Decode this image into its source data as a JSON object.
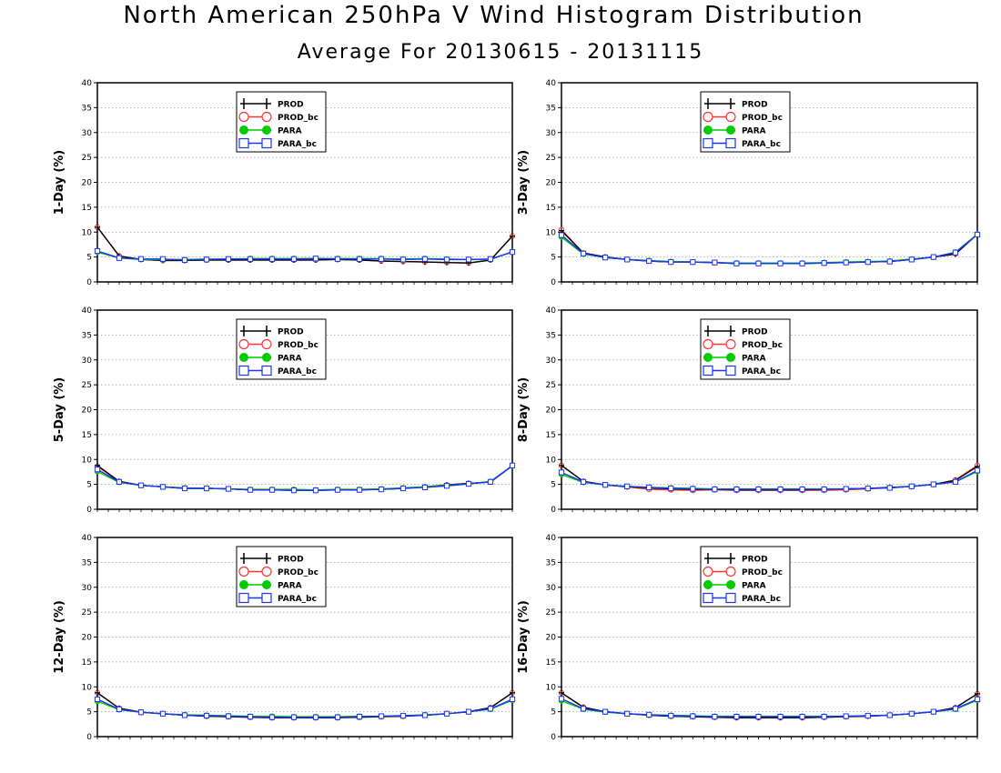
{
  "title": "North American 250hPa V Wind Histogram Distribution",
  "subtitle": "Average For 20130615 - 20131115",
  "series_styles": [
    {
      "name": "PROD",
      "color": "#000000",
      "marker": "plus"
    },
    {
      "name": "PROD_bc",
      "color": "#ff3333",
      "marker": "open-circle"
    },
    {
      "name": "PARA",
      "color": "#00cc00",
      "marker": "filled-circle"
    },
    {
      "name": "PARA_bc",
      "color": "#1a33ff",
      "marker": "open-square"
    }
  ],
  "chart_data": [
    {
      "type": "line",
      "ylabel": "1-Day (%)",
      "ylim": [
        0,
        40
      ],
      "yticks": [
        0,
        5,
        10,
        15,
        20,
        25,
        30,
        35,
        40
      ],
      "grid": true,
      "legend": "top-left",
      "series": [
        {
          "name": "PROD",
          "values": [
            11,
            5.2,
            4.5,
            4.3,
            4.3,
            4.4,
            4.4,
            4.4,
            4.4,
            4.4,
            4.4,
            4.5,
            4.4,
            4.2,
            4.1,
            4.0,
            3.9,
            3.8,
            4.4,
            9.2
          ]
        },
        {
          "name": "PROD_bc",
          "values": [
            11,
            5.2,
            4.5,
            4.3,
            4.3,
            4.4,
            4.4,
            4.4,
            4.4,
            4.4,
            4.4,
            4.5,
            4.4,
            4.2,
            4.1,
            4.0,
            3.9,
            3.8,
            4.4,
            9.2
          ]
        },
        {
          "name": "PARA",
          "values": [
            6.0,
            4.8,
            4.5,
            4.5,
            4.5,
            4.6,
            4.6,
            4.7,
            4.7,
            4.7,
            4.7,
            4.7,
            4.7,
            4.7,
            4.6,
            4.7,
            4.6,
            4.5,
            4.5,
            6.1
          ]
        },
        {
          "name": "PARA_bc",
          "values": [
            6.2,
            4.8,
            4.6,
            4.6,
            4.4,
            4.5,
            4.6,
            4.6,
            4.6,
            4.6,
            4.7,
            4.6,
            4.6,
            4.6,
            4.5,
            4.6,
            4.5,
            4.5,
            4.6,
            6.0
          ]
        }
      ]
    },
    {
      "type": "line",
      "ylabel": "3-Day (%)",
      "ylim": [
        0,
        40
      ],
      "yticks": [
        0,
        5,
        10,
        15,
        20,
        25,
        30,
        35,
        40
      ],
      "grid": true,
      "legend": "top-left",
      "series": [
        {
          "name": "PROD",
          "values": [
            10.3,
            5.8,
            5.0,
            4.5,
            4.2,
            4.0,
            4.0,
            3.9,
            3.7,
            3.7,
            3.7,
            3.7,
            3.8,
            3.9,
            4.0,
            4.1,
            4.5,
            5.0,
            5.6,
            9.6
          ]
        },
        {
          "name": "PROD_bc",
          "values": [
            10.5,
            5.8,
            5.0,
            4.5,
            4.2,
            4.0,
            4.0,
            3.9,
            3.7,
            3.7,
            3.7,
            3.7,
            3.8,
            3.9,
            4.0,
            4.1,
            4.5,
            5.0,
            5.6,
            9.6
          ]
        },
        {
          "name": "PARA",
          "values": [
            9.0,
            5.6,
            4.9,
            4.5,
            4.3,
            4.1,
            4.0,
            3.9,
            3.8,
            3.8,
            3.8,
            3.8,
            3.9,
            4.0,
            4.1,
            4.2,
            4.6,
            5.0,
            6.0,
            9.6
          ]
        },
        {
          "name": "PARA_bc",
          "values": [
            9.4,
            5.7,
            4.9,
            4.5,
            4.2,
            4.0,
            4.0,
            3.9,
            3.7,
            3.7,
            3.7,
            3.7,
            3.8,
            3.9,
            4.0,
            4.1,
            4.5,
            5.0,
            5.9,
            9.5
          ]
        }
      ]
    },
    {
      "type": "line",
      "ylabel": "5-Day (%)",
      "ylim": [
        0,
        40
      ],
      "yticks": [
        0,
        5,
        10,
        15,
        20,
        25,
        30,
        35,
        40
      ],
      "grid": true,
      "legend": "top-left",
      "series": [
        {
          "name": "PROD",
          "values": [
            8.8,
            5.6,
            4.8,
            4.5,
            4.2,
            4.2,
            4.1,
            3.9,
            3.9,
            3.8,
            3.8,
            3.9,
            3.9,
            4.0,
            4.2,
            4.5,
            4.9,
            5.2,
            5.5,
            8.7
          ]
        },
        {
          "name": "PROD_bc",
          "values": [
            8.6,
            5.6,
            4.8,
            4.5,
            4.2,
            4.2,
            4.1,
            3.9,
            3.9,
            3.8,
            3.8,
            3.9,
            3.9,
            4.0,
            4.2,
            4.5,
            4.9,
            5.2,
            5.5,
            8.7
          ]
        },
        {
          "name": "PARA",
          "values": [
            7.6,
            5.4,
            4.8,
            4.5,
            4.3,
            4.2,
            4.1,
            4.0,
            4.0,
            4.0,
            3.9,
            4.0,
            4.0,
            4.1,
            4.3,
            4.5,
            4.8,
            5.1,
            5.6,
            8.7
          ]
        },
        {
          "name": "PARA_bc",
          "values": [
            8.0,
            5.5,
            4.8,
            4.5,
            4.2,
            4.2,
            4.1,
            3.9,
            3.9,
            3.8,
            3.8,
            3.9,
            3.9,
            4.0,
            4.2,
            4.4,
            4.7,
            5.1,
            5.5,
            8.8
          ]
        }
      ]
    },
    {
      "type": "line",
      "ylabel": "8-Day (%)",
      "ylim": [
        0,
        40
      ],
      "yticks": [
        0,
        5,
        10,
        15,
        20,
        25,
        30,
        35,
        40
      ],
      "grid": true,
      "legend": "top-left",
      "series": [
        {
          "name": "PROD",
          "values": [
            8.8,
            5.6,
            4.9,
            4.5,
            4.3,
            4.1,
            4.0,
            4.0,
            3.9,
            3.9,
            3.9,
            3.9,
            4.0,
            4.1,
            4.2,
            4.4,
            4.6,
            5.0,
            5.8,
            8.6
          ]
        },
        {
          "name": "PROD_bc",
          "values": [
            8.8,
            5.6,
            4.9,
            4.5,
            4.0,
            3.9,
            3.8,
            3.9,
            3.8,
            3.8,
            3.8,
            3.8,
            3.8,
            3.9,
            4.1,
            4.3,
            4.6,
            5.0,
            5.9,
            8.8
          ]
        },
        {
          "name": "PARA",
          "values": [
            7.0,
            5.4,
            4.9,
            4.6,
            4.4,
            4.3,
            4.2,
            4.1,
            4.1,
            4.1,
            4.1,
            4.1,
            4.1,
            4.1,
            4.2,
            4.3,
            4.6,
            5.0,
            5.5,
            7.6
          ]
        },
        {
          "name": "PARA_bc",
          "values": [
            7.4,
            5.5,
            4.9,
            4.6,
            4.4,
            4.2,
            4.1,
            4.0,
            4.0,
            4.0,
            4.0,
            4.0,
            4.0,
            4.1,
            4.2,
            4.3,
            4.6,
            5.0,
            5.5,
            7.8
          ]
        }
      ]
    },
    {
      "type": "line",
      "ylabel": "12-Day (%)",
      "ylim": [
        0,
        40
      ],
      "yticks": [
        0,
        5,
        10,
        15,
        20,
        25,
        30,
        35,
        40
      ],
      "grid": true,
      "legend": "top-left",
      "series": [
        {
          "name": "PROD",
          "values": [
            8.8,
            5.7,
            4.9,
            4.6,
            4.3,
            4.1,
            4.0,
            3.9,
            3.8,
            3.8,
            3.8,
            3.8,
            3.9,
            4.0,
            4.1,
            4.3,
            4.6,
            5.0,
            5.8,
            8.8
          ]
        },
        {
          "name": "PROD_bc",
          "values": [
            8.8,
            5.7,
            4.9,
            4.6,
            4.3,
            4.1,
            4.0,
            3.9,
            3.8,
            3.8,
            3.8,
            3.8,
            3.9,
            4.0,
            4.1,
            4.3,
            4.6,
            5.0,
            5.8,
            8.8
          ]
        },
        {
          "name": "PARA",
          "values": [
            7.1,
            5.4,
            4.9,
            4.6,
            4.4,
            4.3,
            4.2,
            4.1,
            4.1,
            4.0,
            4.0,
            4.0,
            4.1,
            4.1,
            4.2,
            4.4,
            4.6,
            5.0,
            5.5,
            7.3
          ]
        },
        {
          "name": "PARA_bc",
          "values": [
            7.5,
            5.5,
            4.9,
            4.6,
            4.3,
            4.2,
            4.1,
            4.0,
            3.9,
            3.9,
            3.9,
            3.9,
            4.0,
            4.1,
            4.2,
            4.3,
            4.6,
            5.0,
            5.6,
            7.5
          ]
        }
      ]
    },
    {
      "type": "line",
      "ylabel": "16-Day (%)",
      "ylim": [
        0,
        40
      ],
      "yticks": [
        0,
        5,
        10,
        15,
        20,
        25,
        30,
        35,
        40
      ],
      "grid": true,
      "legend": "top-left",
      "series": [
        {
          "name": "PROD",
          "values": [
            8.8,
            5.9,
            5.0,
            4.6,
            4.3,
            4.1,
            4.0,
            3.9,
            3.8,
            3.8,
            3.8,
            3.8,
            3.9,
            4.0,
            4.1,
            4.3,
            4.6,
            5.0,
            5.8,
            8.6
          ]
        },
        {
          "name": "PROD_bc",
          "values": [
            8.8,
            5.9,
            5.0,
            4.6,
            4.3,
            4.1,
            4.0,
            3.9,
            3.8,
            3.8,
            3.8,
            3.8,
            3.9,
            4.0,
            4.1,
            4.3,
            4.6,
            5.0,
            5.8,
            8.6
          ]
        },
        {
          "name": "PARA",
          "values": [
            7.2,
            5.5,
            4.9,
            4.6,
            4.4,
            4.3,
            4.2,
            4.1,
            4.1,
            4.1,
            4.1,
            4.1,
            4.1,
            4.1,
            4.2,
            4.3,
            4.6,
            5.0,
            5.5,
            7.3
          ]
        },
        {
          "name": "PARA_bc",
          "values": [
            7.6,
            5.6,
            5.0,
            4.6,
            4.4,
            4.2,
            4.1,
            4.0,
            4.0,
            4.0,
            4.0,
            4.0,
            4.0,
            4.1,
            4.2,
            4.3,
            4.6,
            5.0,
            5.6,
            7.5
          ]
        }
      ]
    }
  ]
}
